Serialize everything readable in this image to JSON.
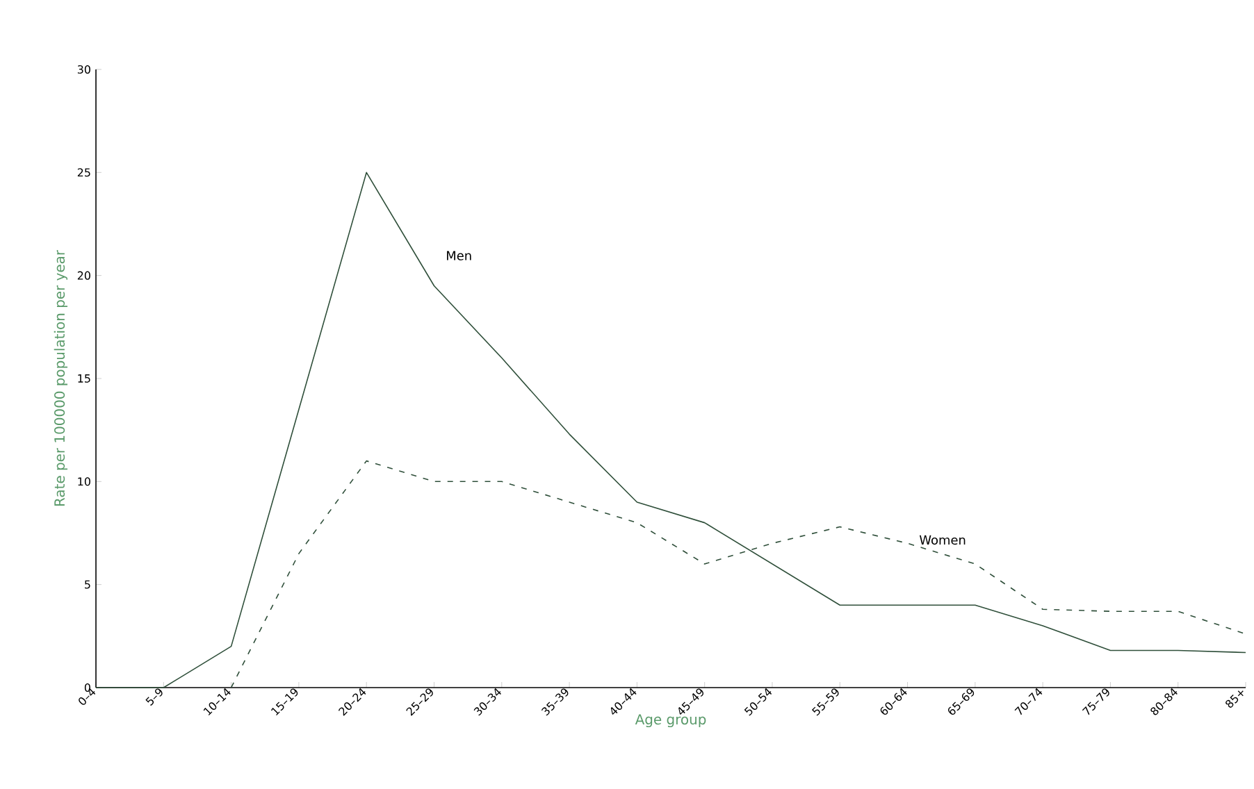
{
  "chart_data": {
    "type": "line",
    "xlabel": "Age group",
    "ylabel": "Rate per 100000 population per year",
    "categories": [
      "0–4",
      "5–9",
      "10–14",
      "15–19",
      "20–24",
      "25–29",
      "30–34",
      "35–39",
      "40–44",
      "45–49",
      "50–54",
      "55–59",
      "60–64",
      "65–69",
      "70–74",
      "75–79",
      "80–84",
      "85+"
    ],
    "series": [
      {
        "name": "Men",
        "color": "#2f4f3a",
        "line_style": "solid",
        "values": [
          0,
          0,
          2,
          13.5,
          25,
          19.5,
          16,
          12.3,
          9,
          8,
          6,
          4,
          4,
          4,
          3,
          1.8,
          1.8,
          1.7
        ]
      },
      {
        "name": "Women",
        "color": "#2f4f3a",
        "line_style": "dashed",
        "values": [
          null,
          null,
          0,
          6.5,
          11,
          10,
          10,
          9,
          8,
          6,
          7,
          7.8,
          7,
          6,
          3.8,
          3.7,
          3.7,
          2.6
        ]
      }
    ],
    "ylim": [
      0,
      30
    ],
    "yticks": [
      0,
      5,
      10,
      15,
      20,
      25,
      30
    ],
    "grid": false,
    "marker": "none"
  }
}
